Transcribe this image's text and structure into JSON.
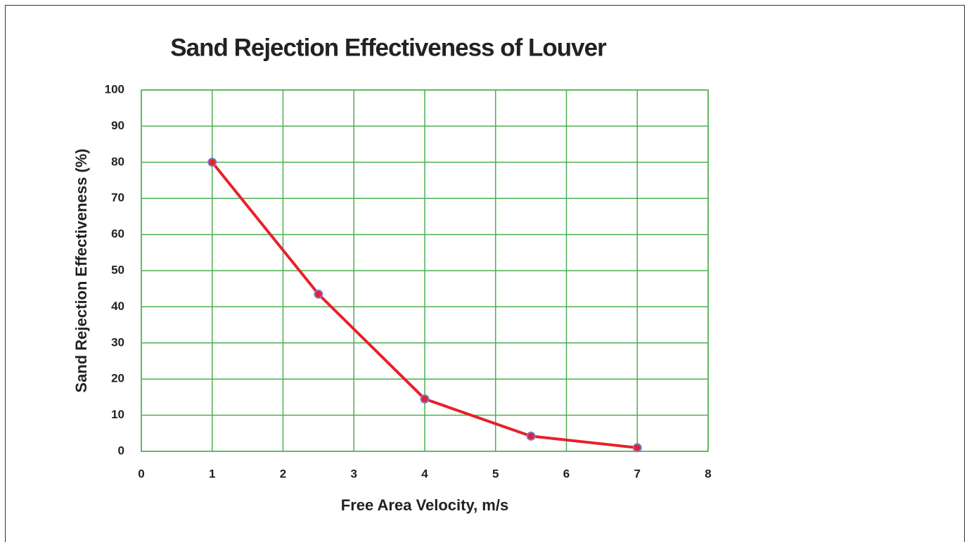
{
  "chart_data": {
    "type": "line",
    "title": "Sand Rejection Effectiveness of Louver",
    "xlabel": "Free Area Velocity, m/s",
    "ylabel": "Sand Rejection  Effectiveness  (%)",
    "x": [
      1,
      2.5,
      4,
      5.5,
      7
    ],
    "series": [
      {
        "name": "Sand Rejection Effectiveness",
        "color": "#e8202a",
        "values": [
          80,
          43.5,
          14.5,
          4.2,
          1
        ]
      }
    ],
    "xlim": [
      0,
      8
    ],
    "xticks": [
      0,
      1,
      2,
      3,
      4,
      5,
      6,
      7,
      8
    ],
    "ylim": [
      0,
      100
    ],
    "yticks": [
      0,
      10,
      20,
      30,
      40,
      50,
      60,
      70,
      80,
      90,
      100
    ],
    "grid": true,
    "grid_color": "#4caf50",
    "marker_edge_color": "#7a7fc8"
  }
}
